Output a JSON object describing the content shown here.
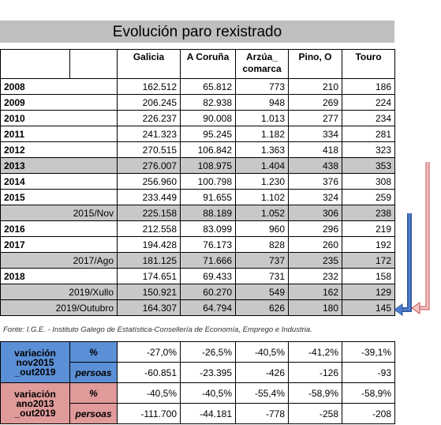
{
  "title": "Evolución paro rexistrado",
  "header": [
    "Galicia",
    "A Coruña",
    "Arzúa_\ncomarca",
    "Pino, O",
    "Touro"
  ],
  "rows": [
    {
      "label": "2008",
      "values": [
        "162.512",
        "65.812",
        "773",
        "210",
        "186"
      ]
    },
    {
      "label": "2009",
      "values": [
        "206.245",
        "82.938",
        "948",
        "269",
        "224"
      ]
    },
    {
      "label": "2010",
      "values": [
        "226.237",
        "90.008",
        "1.013",
        "277",
        "234"
      ]
    },
    {
      "label": "2011",
      "values": [
        "241.323",
        "95.245",
        "1.182",
        "334",
        "281"
      ]
    },
    {
      "label": "2012",
      "values": [
        "270.515",
        "106.842",
        "1.363",
        "418",
        "323"
      ]
    },
    {
      "label": "2013",
      "values": [
        "276.007",
        "108.975",
        "1.404",
        "438",
        "353"
      ],
      "shaded": true
    },
    {
      "label": "2014",
      "values": [
        "256.960",
        "100.798",
        "1.230",
        "376",
        "308"
      ]
    },
    {
      "label": "2015",
      "values": [
        "233.449",
        "91.655",
        "1.102",
        "324",
        "259"
      ]
    },
    {
      "label": "2015/Nov",
      "values": [
        "225.158",
        "88.189",
        "1.052",
        "306",
        "238"
      ],
      "shaded": true,
      "sub": true
    },
    {
      "label": "2016",
      "values": [
        "212.558",
        "83.099",
        "960",
        "296",
        "219"
      ]
    },
    {
      "label": "2017",
      "values": [
        "194.428",
        "76.173",
        "828",
        "260",
        "192"
      ]
    },
    {
      "label": "2017/Ago",
      "values": [
        "181.125",
        "71.666",
        "737",
        "235",
        "172"
      ],
      "shaded": true,
      "sub": true
    },
    {
      "label": "2018",
      "values": [
        "174.651",
        "69.433",
        "731",
        "232",
        "158"
      ]
    },
    {
      "label": "2019/Xullo",
      "values": [
        "150.921",
        "60.270",
        "549",
        "162",
        "129"
      ],
      "shaded": true,
      "sub": true
    },
    {
      "label": "2019/Outubro",
      "values": [
        "164.307",
        "64.794",
        "626",
        "180",
        "145"
      ],
      "shaded": true,
      "sub": true
    }
  ],
  "source": "Fonte: I.G.E. - Instituto Galego de Estatística-Consellería de Economía, Emprego e Industria.",
  "variations": [
    {
      "label": "variación\nnov2015\n_out2019",
      "color": "#5b8fd6",
      "rows": [
        {
          "unit": "%",
          "values": [
            "-27,0%",
            "-26,5%",
            "-40,5%",
            "-41,2%",
            "-39,1%"
          ]
        },
        {
          "unit": "persoas",
          "values": [
            "-60.851",
            "-23.395",
            "-426",
            "-126",
            "-93"
          ]
        }
      ]
    },
    {
      "label": "variación\nano2013\n_out2019",
      "color": "#e09a9a",
      "rows": [
        {
          "unit": "%",
          "values": [
            "-40,5%",
            "-40,5%",
            "-55,4%",
            "-58,9%",
            "-58,9%"
          ]
        },
        {
          "unit": "persoas",
          "values": [
            "-111.700",
            "-44.181",
            "-778",
            "-258",
            "-208"
          ]
        }
      ]
    }
  ]
}
